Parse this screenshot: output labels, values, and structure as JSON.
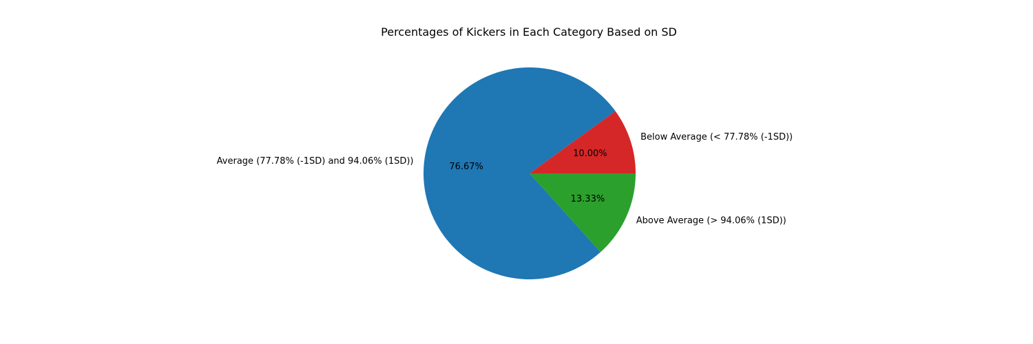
{
  "chart_data": {
    "type": "pie",
    "title": "Percentages of Kickers in Each Category Based on SD",
    "slices": [
      {
        "label": "Below Average (< 77.78% (-1SD))",
        "value": 10.0,
        "pct_label": "10.00%",
        "color": "#d62728"
      },
      {
        "label": "Average (77.78% (-1SD) and 94.06% (1SD))",
        "value": 76.67,
        "pct_label": "76.67%",
        "color": "#1f77b4"
      },
      {
        "label": "Above Average (> 94.06% (1SD))",
        "value": 13.33,
        "pct_label": "13.33%",
        "color": "#2ca02c"
      }
    ],
    "start_angle_deg": 0,
    "direction": "counterclockwise",
    "legend": "none"
  }
}
